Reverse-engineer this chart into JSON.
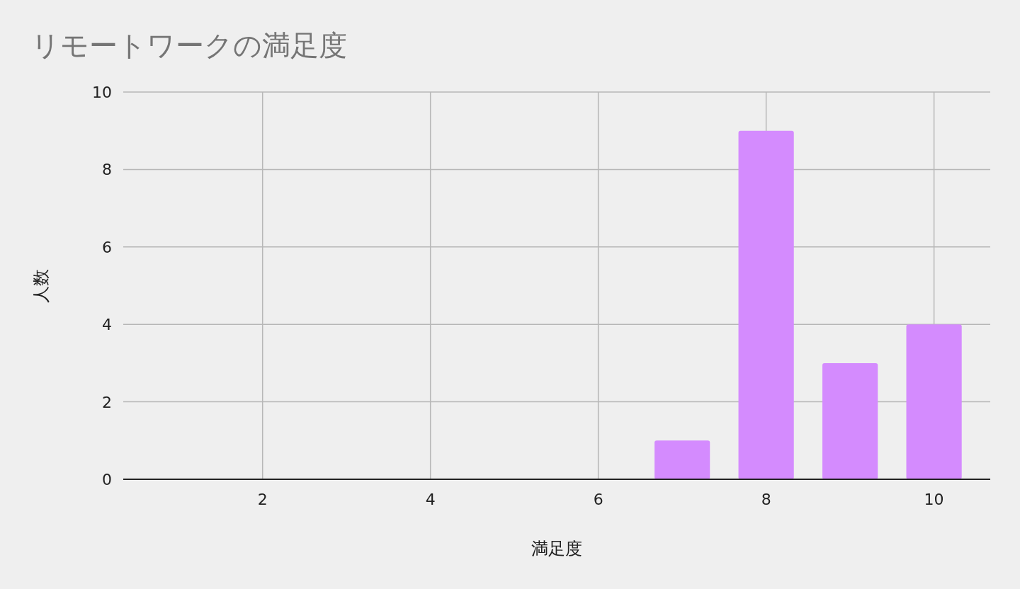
{
  "chart_data": {
    "type": "bar",
    "title": "リモートワークの満足度",
    "xlabel": "満足度",
    "ylabel": "人数",
    "x": [
      7,
      8,
      9,
      10
    ],
    "series": [
      {
        "color": "#d48bfe",
        "values": [
          1,
          9,
          3,
          4
        ]
      }
    ],
    "xlim": [
      0.34,
      10.67
    ],
    "xticks": [
      2,
      4,
      6,
      8,
      10
    ],
    "ylim": [
      0,
      10
    ],
    "yticks": [
      0,
      2,
      4,
      6,
      8,
      10
    ],
    "grid": true
  }
}
